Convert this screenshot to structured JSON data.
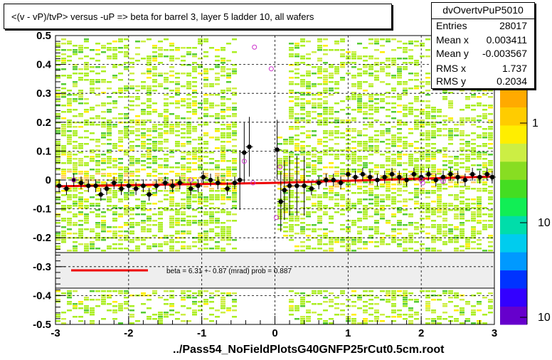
{
  "title": "<(v - vP)/tvP> versus  -uP => beta for barrel 3, layer 5 ladder 10, all wafers",
  "footer": "../Pass54_NoFieldPlotsG40GNFP25rCut0.5cm.root",
  "stats": {
    "name": "dvOvertvPuP5010",
    "rows": [
      {
        "key": "Entries",
        "value": "28017"
      },
      {
        "key": "Mean x",
        "value": "0.003411"
      },
      {
        "key": "Mean y",
        "value": "-0.003567"
      },
      {
        "key": "RMS x",
        "value": "1.737"
      },
      {
        "key": "RMS y",
        "value": "0.2034"
      }
    ]
  },
  "fit_legend": {
    "text": "beta =    6.31 +-  0.87 (mrad) prob = 0.887",
    "line_color": "#ee0000"
  },
  "palette": {
    "labels": [
      "1",
      "10",
      "10"
    ],
    "colors": [
      "#6600cc",
      "#3300ff",
      "#0033ff",
      "#0099ff",
      "#00ccee",
      "#00ddaa",
      "#11ee55",
      "#44dd22",
      "#88dd22",
      "#ccee44",
      "#ffee00",
      "#ffcc00",
      "#ffaa00"
    ]
  },
  "chart_data": {
    "type": "scatter",
    "xlim": [
      -3,
      3
    ],
    "ylim": [
      -0.5,
      0.5
    ],
    "xticks": [
      "-3",
      "-2",
      "-1",
      "0",
      "1",
      "2",
      "3"
    ],
    "yticks": [
      "-0.5",
      "-0.4",
      "-0.3",
      "-0.2",
      "-0.1",
      "0",
      "0.1",
      "0.2",
      "0.3",
      "0.4",
      "0.5"
    ],
    "grid": true,
    "fit_line": {
      "x": [
        -3,
        0,
        3
      ],
      "y": [
        -0.022,
        -0.01,
        0.012
      ],
      "color": "#ee0000"
    },
    "profile_points": [
      {
        "x": -2.95,
        "y": -0.02
      },
      {
        "x": -2.85,
        "y": -0.03
      },
      {
        "x": -2.75,
        "y": 0.0
      },
      {
        "x": -2.65,
        "y": -0.01
      },
      {
        "x": -2.55,
        "y": -0.02
      },
      {
        "x": -2.45,
        "y": -0.02
      },
      {
        "x": -2.38,
        "y": -0.05
      },
      {
        "x": -2.3,
        "y": -0.03
      },
      {
        "x": -2.2,
        "y": -0.01
      },
      {
        "x": -2.1,
        "y": -0.03
      },
      {
        "x": -2.0,
        "y": -0.02
      },
      {
        "x": -1.9,
        "y": -0.03
      },
      {
        "x": -1.8,
        "y": -0.02
      },
      {
        "x": -1.72,
        "y": -0.05
      },
      {
        "x": -1.62,
        "y": -0.02
      },
      {
        "x": -1.5,
        "y": -0.01
      },
      {
        "x": -1.4,
        "y": -0.02
      },
      {
        "x": -1.3,
        "y": -0.01
      },
      {
        "x": -1.15,
        "y": -0.03
      },
      {
        "x": -1.05,
        "y": -0.02
      },
      {
        "x": -0.98,
        "y": 0.01
      },
      {
        "x": -0.88,
        "y": 0.0
      },
      {
        "x": -0.78,
        "y": -0.01
      },
      {
        "x": -0.65,
        "y": -0.03
      },
      {
        "x": -0.55,
        "y": -0.01
      },
      {
        "x": -0.48,
        "y": 0.0
      },
      {
        "x": -0.42,
        "y": 0.095
      },
      {
        "x": -0.35,
        "y": 0.115
      },
      {
        "x": 0.03,
        "y": 0.105
      },
      {
        "x": 0.08,
        "y": -0.075
      },
      {
        "x": 0.13,
        "y": -0.035
      },
      {
        "x": 0.2,
        "y": -0.02
      },
      {
        "x": 0.3,
        "y": -0.02
      },
      {
        "x": 0.4,
        "y": -0.02
      },
      {
        "x": 0.5,
        "y": -0.03
      },
      {
        "x": 0.6,
        "y": -0.01
      },
      {
        "x": 0.7,
        "y": 0.0
      },
      {
        "x": 0.8,
        "y": 0.0
      },
      {
        "x": 0.9,
        "y": -0.01
      },
      {
        "x": 1.0,
        "y": 0.02
      },
      {
        "x": 1.1,
        "y": 0.01
      },
      {
        "x": 1.2,
        "y": 0.02
      },
      {
        "x": 1.3,
        "y": 0.01
      },
      {
        "x": 1.4,
        "y": 0.0
      },
      {
        "x": 1.5,
        "y": 0.01
      },
      {
        "x": 1.6,
        "y": 0.02
      },
      {
        "x": 1.7,
        "y": 0.01
      },
      {
        "x": 1.8,
        "y": 0.0
      },
      {
        "x": 1.9,
        "y": 0.02
      },
      {
        "x": 2.0,
        "y": 0.01
      },
      {
        "x": 2.1,
        "y": 0.02
      },
      {
        "x": 2.2,
        "y": 0.0
      },
      {
        "x": 2.3,
        "y": 0.01
      },
      {
        "x": 2.4,
        "y": 0.02
      },
      {
        "x": 2.5,
        "y": 0.01
      },
      {
        "x": 2.6,
        "y": 0.0
      },
      {
        "x": 2.7,
        "y": 0.02
      },
      {
        "x": 2.8,
        "y": 0.01
      },
      {
        "x": 2.9,
        "y": 0.02
      },
      {
        "x": 2.97,
        "y": 0.01
      }
    ],
    "open_markers": [
      {
        "x": -0.28,
        "y": 0.46
      },
      {
        "x": -0.05,
        "y": 0.385
      },
      {
        "x": -0.42,
        "y": 0.065
      },
      {
        "x": 0.07,
        "y": 0.045
      },
      {
        "x": 0.02,
        "y": -0.13
      },
      {
        "x": -0.3,
        "y": -0.01
      },
      {
        "x": -2.75,
        "y": 0.0
      },
      {
        "x": -1.15,
        "y": 0.0
      },
      {
        "x": 2.0,
        "y": 0.0
      },
      {
        "x": 2.3,
        "y": -0.005
      },
      {
        "x": 2.02,
        "y": -0.01
      }
    ]
  }
}
